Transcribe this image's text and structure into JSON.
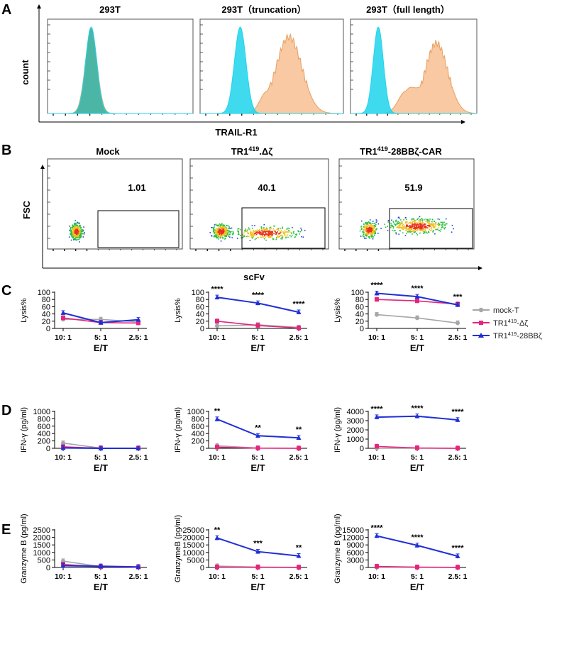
{
  "colors": {
    "mock": "#a6a6a6",
    "delta": "#e6247d",
    "car": "#1f2fd6",
    "cyan": "#1fd3ec",
    "orange": "#f6b783",
    "teal": "#2db3a6"
  },
  "panel_labels": [
    "A",
    "B",
    "C",
    "D",
    "E"
  ],
  "panelA": {
    "titles": [
      "293T",
      "293T（truncation）",
      "293T（full length）"
    ],
    "ylabel": "count",
    "xlabel": "TRAIL-R1"
  },
  "panelB": {
    "titles": [
      "Mock",
      "TR1",
      "TR1"
    ],
    "title_sup": [
      "",
      "419",
      "419"
    ],
    "title_suffix": [
      "",
      ".Δζ",
      "-28BBζ-CAR"
    ],
    "gate_values": [
      "1.01",
      "40.1",
      "51.9"
    ],
    "ylabel": "FSC",
    "xlabel": "scFv"
  },
  "chart_data": [
    {
      "id": "C1",
      "type": "line",
      "xlabel": "E/T",
      "ylabel": "Lysis%",
      "categories": [
        "10: 1",
        "5: 1",
        "2.5: 1"
      ],
      "ylim": [
        0,
        100
      ],
      "yticks": [
        "0",
        "20",
        "40",
        "60",
        "80",
        "100"
      ],
      "series": [
        {
          "name": "mock-T",
          "values": [
            25,
            25,
            18
          ]
        },
        {
          "name": "TR1419-Δζ",
          "values": [
            29,
            16,
            15
          ]
        },
        {
          "name": "TR1419-28BBζ",
          "values": [
            43,
            16,
            24
          ]
        }
      ],
      "annotations": [
        "",
        "",
        ""
      ]
    },
    {
      "id": "C2",
      "type": "line",
      "xlabel": "E/T",
      "ylabel": "Lysis%",
      "categories": [
        "10: 1",
        "5: 1",
        "2.5: 1"
      ],
      "ylim": [
        0,
        100
      ],
      "yticks": [
        "0",
        "20",
        "40",
        "60",
        "80",
        "100"
      ],
      "series": [
        {
          "name": "mock-T",
          "values": [
            7,
            10,
            3
          ]
        },
        {
          "name": "TR1419-Δζ",
          "values": [
            20,
            8,
            1
          ]
        },
        {
          "name": "TR1419-28BBζ",
          "values": [
            86,
            70,
            45
          ]
        }
      ],
      "annotations": [
        "****",
        "****",
        "****"
      ]
    },
    {
      "id": "C3",
      "type": "line",
      "xlabel": "E/T",
      "ylabel": "Lysis%",
      "categories": [
        "10: 1",
        "5: 1",
        "2.5: 1"
      ],
      "ylim": [
        0,
        100
      ],
      "yticks": [
        "0",
        "20",
        "40",
        "60",
        "80",
        "100"
      ],
      "series": [
        {
          "name": "mock-T",
          "values": [
            38,
            29,
            15
          ]
        },
        {
          "name": "TR1419-Δζ",
          "values": [
            80,
            76,
            67
          ]
        },
        {
          "name": "TR1419-28BBζ",
          "values": [
            97,
            88,
            65
          ]
        }
      ],
      "annotations": [
        "****",
        "****",
        "***"
      ]
    },
    {
      "id": "D1",
      "type": "line",
      "xlabel": "E/T",
      "ylabel": "IFN-γ (pg/ml)",
      "categories": [
        "10: 1",
        "5: 1",
        "2.5: 1"
      ],
      "ylim": [
        0,
        1000
      ],
      "yticks": [
        "0",
        "200",
        "400",
        "600",
        "800",
        "1000"
      ],
      "series": [
        {
          "name": "mock-T",
          "values": [
            140,
            5,
            0
          ]
        },
        {
          "name": "TR1419-Δζ",
          "values": [
            40,
            2,
            0
          ]
        },
        {
          "name": "TR1419-28BBζ",
          "values": [
            10,
            0,
            0
          ]
        }
      ],
      "annotations": [
        "",
        "",
        ""
      ]
    },
    {
      "id": "D2",
      "type": "line",
      "xlabel": "E/T",
      "ylabel": "IFN-γ (pg/ml)",
      "categories": [
        "10: 1",
        "5: 1",
        "2.5: 1"
      ],
      "ylim": [
        0,
        1000
      ],
      "yticks": [
        "0",
        "200",
        "400",
        "600",
        "800",
        "1000"
      ],
      "series": [
        {
          "name": "mock-T",
          "values": [
            70,
            5,
            0
          ]
        },
        {
          "name": "TR1419-Δζ",
          "values": [
            30,
            3,
            0
          ]
        },
        {
          "name": "TR1419-28BBζ",
          "values": [
            790,
            340,
            285
          ]
        }
      ],
      "annotations": [
        "**",
        "**",
        "**"
      ]
    },
    {
      "id": "D3",
      "type": "line",
      "xlabel": "E/T",
      "ylabel": "IFN-γ (pg/ml)",
      "categories": [
        "10: 1",
        "5: 1",
        "2.5: 1"
      ],
      "ylim": [
        0,
        4000
      ],
      "yticks": [
        "0",
        "1000",
        "2000",
        "3000",
        "4000"
      ],
      "series": [
        {
          "name": "mock-T",
          "values": [
            10,
            5,
            0
          ]
        },
        {
          "name": "TR1419-Δζ",
          "values": [
            200,
            40,
            0
          ]
        },
        {
          "name": "TR1419-28BBζ",
          "values": [
            3380,
            3480,
            3080
          ]
        }
      ],
      "annotations": [
        "****",
        "****",
        "****"
      ]
    },
    {
      "id": "E1",
      "type": "line",
      "xlabel": "E/T",
      "ylabel": "Granzyme B (pg/ml)",
      "categories": [
        "10: 1",
        "5: 1",
        "2.5: 1"
      ],
      "ylim": [
        0,
        2500
      ],
      "yticks": [
        "0",
        "500",
        "1000",
        "1500",
        "2000",
        "2500"
      ],
      "series": [
        {
          "name": "mock-T",
          "values": [
            420,
            60,
            30
          ]
        },
        {
          "name": "TR1419-Δζ",
          "values": [
            200,
            50,
            20
          ]
        },
        {
          "name": "TR1419-28BBζ",
          "values": [
            120,
            80,
            40
          ]
        }
      ],
      "annotations": [
        "",
        "",
        ""
      ]
    },
    {
      "id": "E2",
      "type": "line",
      "xlabel": "E/T",
      "ylabel": "GranzymeB (pg/ml)",
      "categories": [
        "10: 1",
        "5: 1",
        "2.5: 1"
      ],
      "ylim": [
        0,
        25000
      ],
      "yticks": [
        "0",
        "5000",
        "10000",
        "15000",
        "20000",
        "25000"
      ],
      "series": [
        {
          "name": "mock-T",
          "values": [
            900,
            300,
            100
          ]
        },
        {
          "name": "TR1419-Δζ",
          "values": [
            200,
            100,
            50
          ]
        },
        {
          "name": "TR1419-28BBζ",
          "values": [
            19600,
            10500,
            7700
          ]
        }
      ],
      "annotations": [
        "**",
        "***",
        "**"
      ]
    },
    {
      "id": "E3",
      "type": "line",
      "xlabel": "E/T",
      "ylabel": "Granzyme B (pg/ml)",
      "categories": [
        "10: 1",
        "5: 1",
        "2.5: 1"
      ],
      "ylim": [
        0,
        15000
      ],
      "yticks": [
        "0",
        "3000",
        "6000",
        "9000",
        "12000",
        "15000"
      ],
      "series": [
        {
          "name": "mock-T",
          "values": [
            100,
            50,
            20
          ]
        },
        {
          "name": "TR1419-Δζ",
          "values": [
            400,
            100,
            30
          ]
        },
        {
          "name": "TR1419-28BBζ",
          "values": [
            12600,
            8800,
            4500
          ]
        }
      ],
      "annotations": [
        "****",
        "****",
        "****"
      ]
    }
  ],
  "legend": {
    "items": [
      {
        "name": "mock-T",
        "base": "mock-T",
        "sup": "",
        "suffix": "",
        "marker": "circle"
      },
      {
        "name": "TR1419-Δζ",
        "base": "TR1",
        "sup": "419",
        "suffix": "-Δζ",
        "marker": "square"
      },
      {
        "name": "TR1419-28BBζ",
        "base": "TR1",
        "sup": "419",
        "suffix": "-28BBζ",
        "marker": "triangle"
      }
    ]
  }
}
